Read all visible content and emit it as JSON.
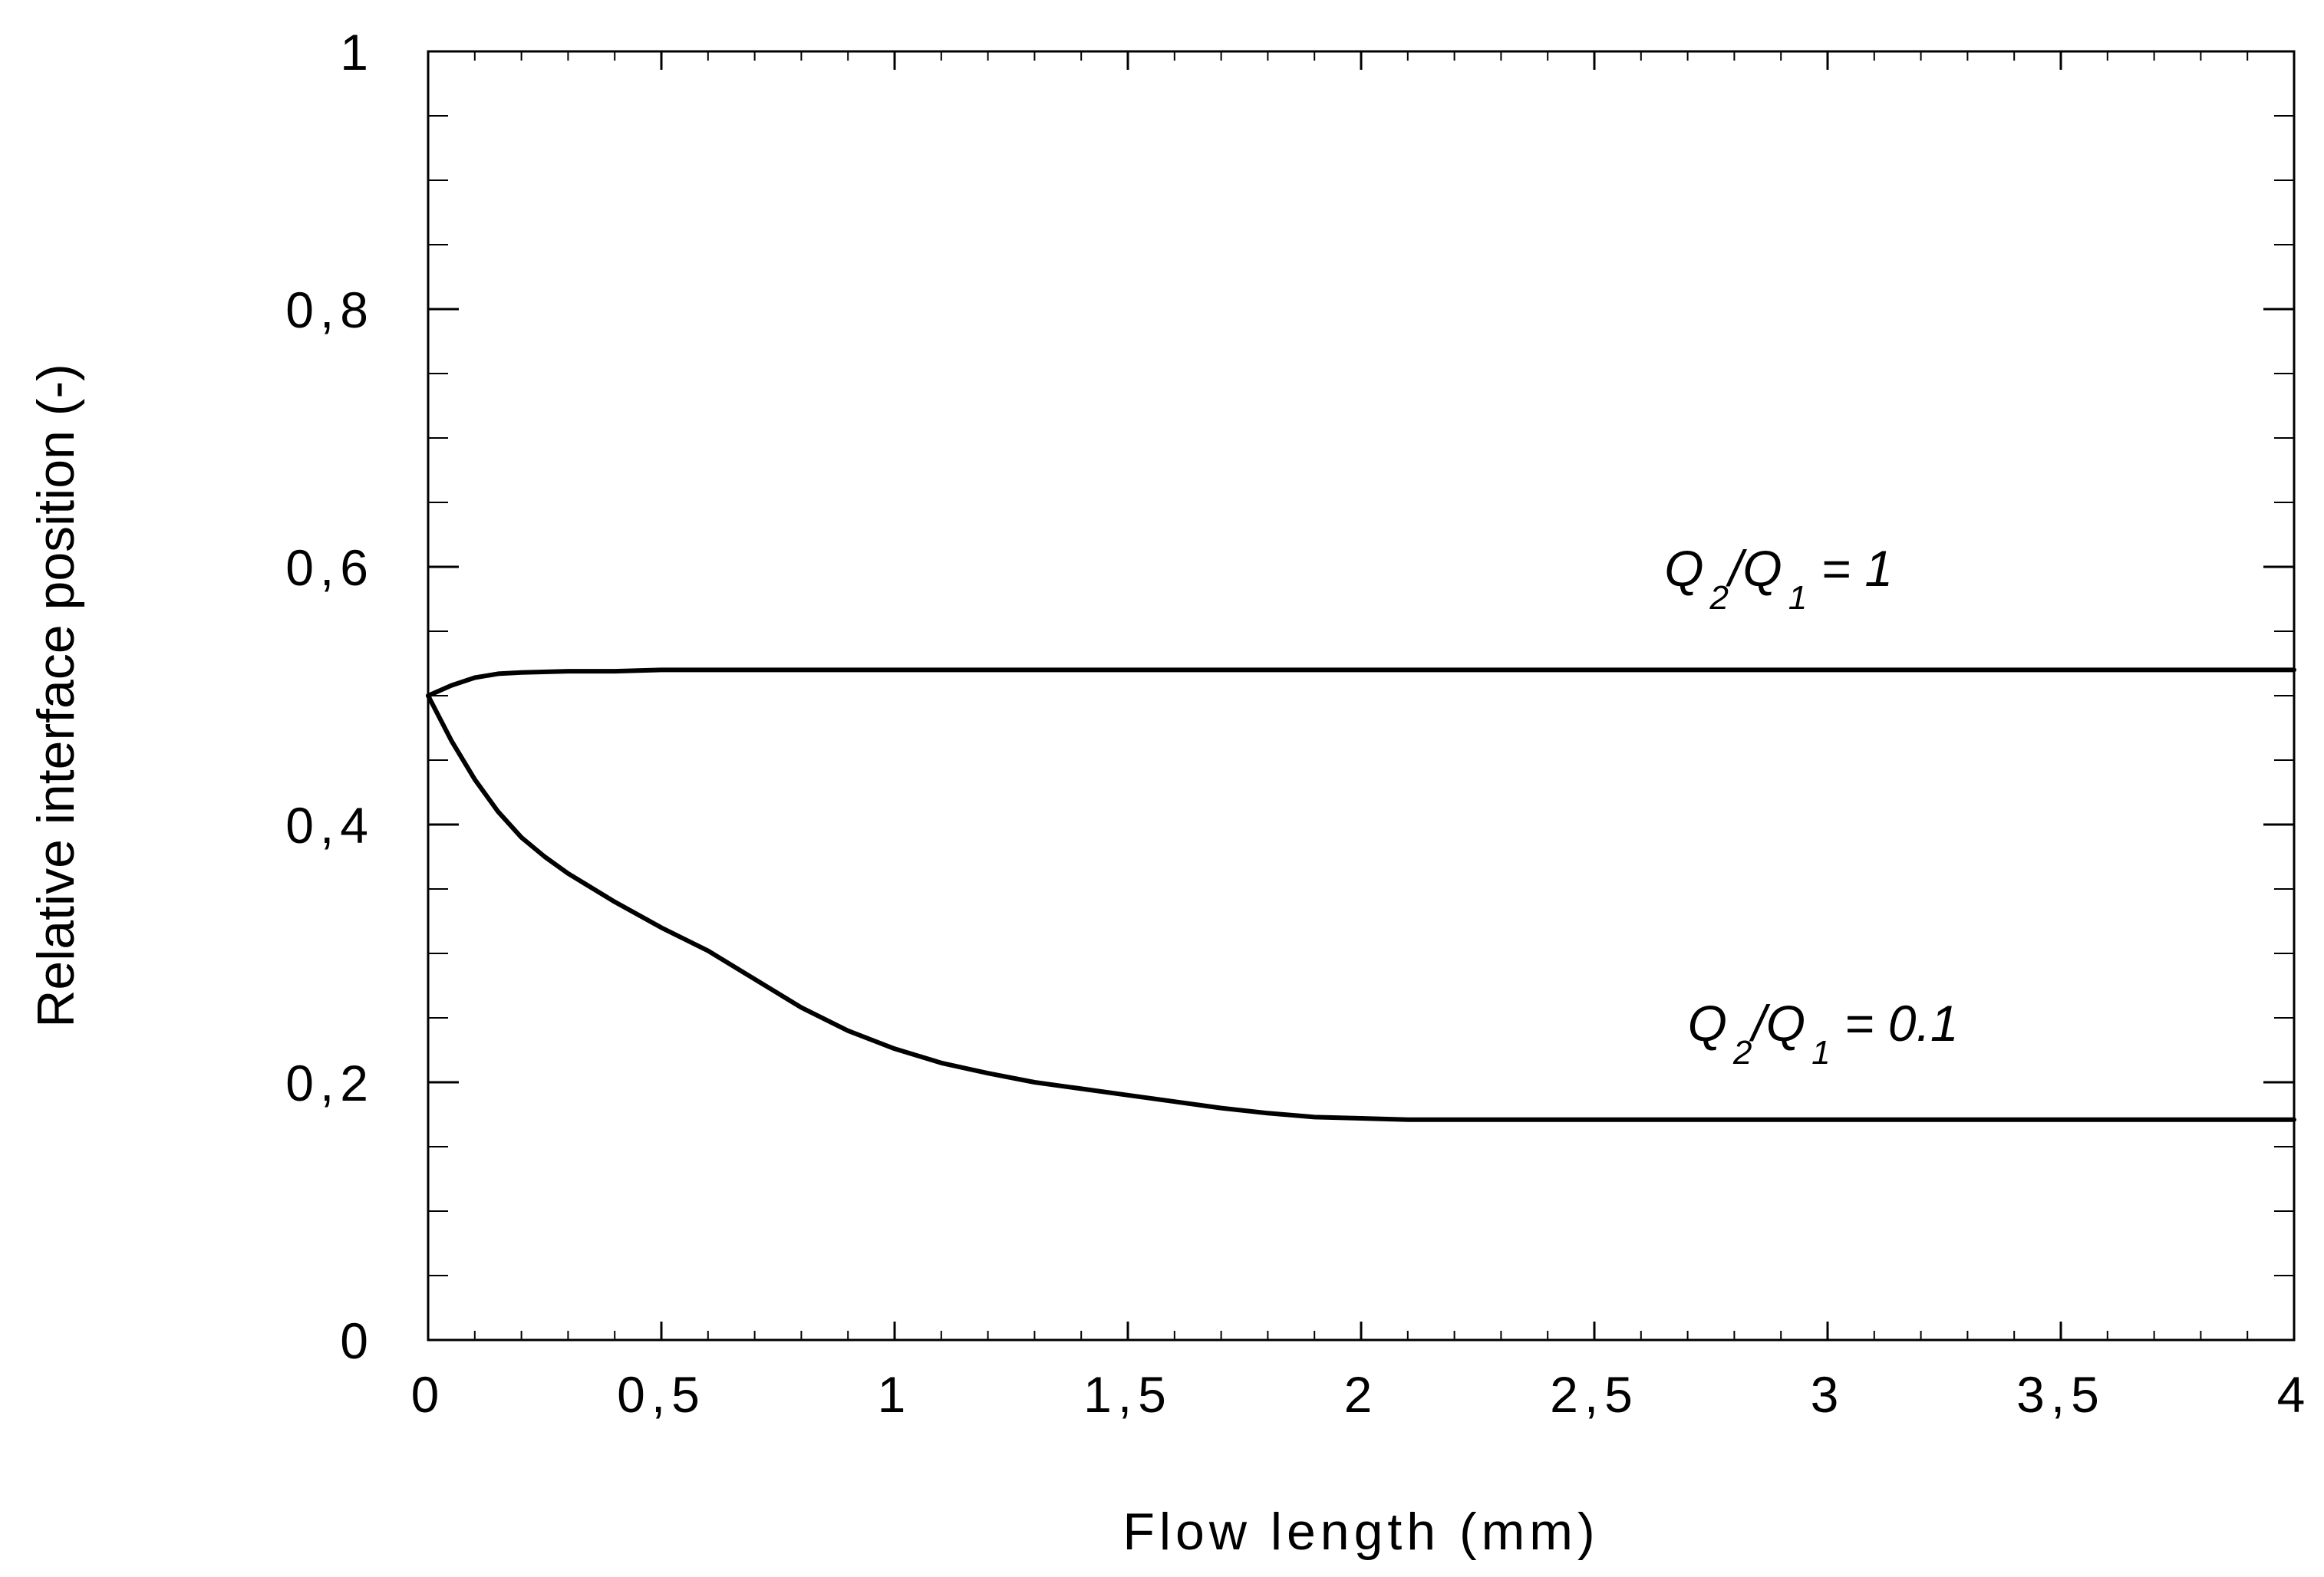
{
  "chart_data": {
    "type": "line",
    "title": "",
    "xlabel": "Flow length (mm)",
    "ylabel": "Relative interface position (-)",
    "xlim": [
      0,
      4
    ],
    "ylim": [
      0,
      1
    ],
    "grid": false,
    "x_ticks": [
      {
        "value": 0,
        "label": "0"
      },
      {
        "value": 0.5,
        "label": "0,5"
      },
      {
        "value": 1,
        "label": "1"
      },
      {
        "value": 1.5,
        "label": "1,5"
      },
      {
        "value": 2,
        "label": "2"
      },
      {
        "value": 2.5,
        "label": "2,5"
      },
      {
        "value": 3,
        "label": "3"
      },
      {
        "value": 3.5,
        "label": "3,5"
      },
      {
        "value": 4,
        "label": "4"
      }
    ],
    "y_ticks": [
      {
        "value": 0,
        "label": "0"
      },
      {
        "value": 0.2,
        "label": "0,2"
      },
      {
        "value": 0.4,
        "label": "0,4"
      },
      {
        "value": 0.6,
        "label": "0,6"
      },
      {
        "value": 0.8,
        "label": "0,8"
      },
      {
        "value": 1,
        "label": "1"
      }
    ],
    "series": [
      {
        "annotation": {
          "q_top": "Q",
          "sub_top": "2",
          "slash": "/Q",
          "sub_bottom": "1",
          "eq": "= 1",
          "x": 2.65,
          "y": 0.585
        },
        "x": [
          0,
          0.05,
          0.1,
          0.15,
          0.2,
          0.3,
          0.4,
          0.5,
          1,
          2,
          3,
          4
        ],
        "y": [
          0.5,
          0.508,
          0.514,
          0.517,
          0.518,
          0.519,
          0.519,
          0.52,
          0.52,
          0.52,
          0.52,
          0.52
        ]
      },
      {
        "annotation": {
          "q_top": "Q",
          "sub_top": "2",
          "slash": "/Q",
          "sub_bottom": "1",
          "eq": "= 0.1",
          "x": 2.7,
          "y": 0.232
        },
        "x": [
          0,
          0.05,
          0.1,
          0.15,
          0.2,
          0.25,
          0.3,
          0.4,
          0.5,
          0.6,
          0.7,
          0.8,
          0.9,
          1.0,
          1.1,
          1.2,
          1.3,
          1.4,
          1.5,
          1.6,
          1.7,
          1.8,
          1.9,
          2.0,
          2.1,
          2.5,
          3.0,
          3.5,
          4.0
        ],
        "y": [
          0.5,
          0.465,
          0.435,
          0.41,
          0.39,
          0.375,
          0.362,
          0.34,
          0.32,
          0.302,
          0.28,
          0.258,
          0.24,
          0.226,
          0.215,
          0.207,
          0.2,
          0.195,
          0.19,
          0.185,
          0.18,
          0.176,
          0.173,
          0.172,
          0.171,
          0.171,
          0.171,
          0.171,
          0.171
        ]
      }
    ]
  }
}
